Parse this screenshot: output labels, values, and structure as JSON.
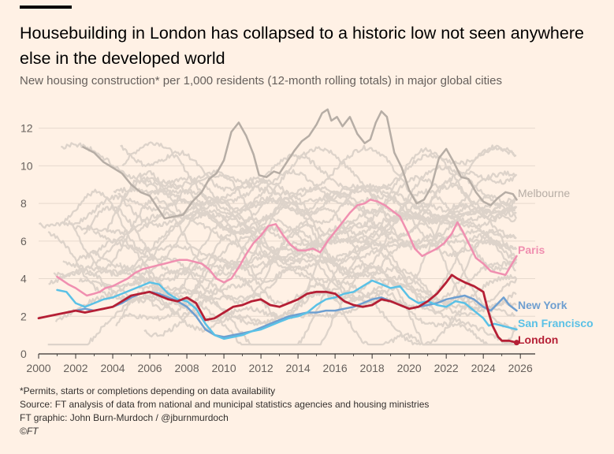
{
  "header": {
    "title": "Housebuilding in London has collapsed to a historic low not seen anywhere else in the developed world",
    "subtitle": "New housing construction* per 1,000 residents (12-month rolling totals) in major global cities"
  },
  "footer": {
    "note": "*Permits, starts or completions depending on data availability",
    "source": "Source: FT analysis of data from national and municipal statistics agencies and housing ministries",
    "credit": "FT graphic: John Burn-Murdoch / @jburnmurdoch",
    "copyright": "©FT"
  },
  "chart_data": {
    "type": "line",
    "title": "Housebuilding in London has collapsed to a historic low not seen anywhere else in the developed world",
    "xlabel": "",
    "ylabel": "",
    "xlim": [
      2000,
      2026.8
    ],
    "ylim": [
      0,
      13.2
    ],
    "x_ticks": [
      "2000",
      "2002",
      "2004",
      "2006",
      "2008",
      "2010",
      "2012",
      "2014",
      "2016",
      "2018",
      "2020",
      "2022",
      "2024",
      "2026"
    ],
    "x_tick_values": [
      2000,
      2002,
      2004,
      2006,
      2008,
      2010,
      2012,
      2014,
      2016,
      2018,
      2020,
      2022,
      2024,
      2026
    ],
    "y_ticks": [
      "0",
      "2",
      "4",
      "6",
      "8",
      "10",
      "12"
    ],
    "y_tick_values": [
      0,
      2,
      4,
      6,
      8,
      10,
      12
    ],
    "grid": true,
    "colors": {
      "background": "#FFF1E5",
      "grid": "#E6D9CE",
      "axis": "#33302E",
      "other_cities": "#DDD3CA",
      "Melbourne": "#B6ADA5",
      "Paris": "#F08FB0",
      "New York": "#6E9FD0",
      "San Francisco": "#5AC1E6",
      "London": "#B51F35"
    },
    "other_cities_description": "Unlabelled grey lines represent other major global cities",
    "series": [
      {
        "name": "Melbourne",
        "label": "Melbourne",
        "x": [
          2002.4,
          2003.0,
          2003.5,
          2004.0,
          2004.5,
          2005.0,
          2005.5,
          2006.0,
          2006.4,
          2006.8,
          2007.3,
          2007.8,
          2008.3,
          2008.8,
          2009.2,
          2009.6,
          2010.0,
          2010.4,
          2010.8,
          2011.2,
          2011.6,
          2011.9,
          2012.3,
          2012.7,
          2013.0,
          2013.4,
          2013.8,
          2014.2,
          2014.6,
          2015.0,
          2015.3,
          2015.6,
          2015.8,
          2016.1,
          2016.4,
          2016.8,
          2017.2,
          2017.6,
          2017.9,
          2018.2,
          2018.5,
          2018.8,
          2019.2,
          2019.6,
          2020.0,
          2020.4,
          2020.8,
          2021.2,
          2021.6,
          2022.0,
          2022.4,
          2022.8,
          2023.2,
          2023.6,
          2024.0,
          2024.4,
          2024.8,
          2025.2,
          2025.6,
          2025.8
        ],
        "values": [
          11.0,
          10.7,
          10.2,
          9.9,
          9.6,
          9.0,
          8.6,
          8.4,
          7.8,
          7.2,
          7.3,
          7.4,
          8.1,
          8.6,
          9.3,
          9.6,
          10.3,
          11.8,
          12.3,
          11.6,
          10.6,
          9.5,
          9.4,
          9.7,
          9.6,
          10.2,
          10.8,
          11.3,
          11.6,
          12.2,
          12.8,
          13.0,
          12.4,
          12.6,
          12.1,
          12.6,
          11.7,
          11.2,
          11.4,
          12.3,
          12.9,
          12.6,
          10.7,
          9.9,
          8.7,
          8.0,
          8.2,
          8.9,
          10.4,
          10.9,
          10.2,
          9.4,
          9.3,
          8.6,
          8.1,
          7.9,
          8.3,
          8.6,
          8.5,
          8.2
        ]
      },
      {
        "name": "Paris",
        "label": "Paris",
        "x": [
          2001.0,
          2001.3,
          2001.6,
          2002.0,
          2002.3,
          2002.6,
          2003.0,
          2003.3,
          2003.6,
          2004.0,
          2004.4,
          2004.8,
          2005.2,
          2005.6,
          2006.0,
          2006.4,
          2006.8,
          2007.2,
          2007.6,
          2008.0,
          2008.4,
          2008.8,
          2009.2,
          2009.6,
          2010.0,
          2010.4,
          2010.8,
          2011.2,
          2011.6,
          2012.0,
          2012.4,
          2012.8,
          2013.2,
          2013.6,
          2014.0,
          2014.4,
          2014.8,
          2015.2,
          2015.6,
          2016.0,
          2016.4,
          2016.8,
          2017.2,
          2017.6,
          2017.9,
          2018.3,
          2018.7,
          2019.1,
          2019.5,
          2019.9,
          2020.3,
          2020.7,
          2021.1,
          2021.5,
          2021.9,
          2022.3,
          2022.6,
          2022.9,
          2023.2,
          2023.6,
          2024.0,
          2024.4,
          2024.8,
          2025.2,
          2025.5,
          2025.8
        ],
        "values": [
          4.1,
          3.9,
          3.7,
          3.5,
          3.3,
          3.1,
          3.2,
          3.3,
          3.5,
          3.6,
          3.8,
          4.0,
          4.3,
          4.5,
          4.6,
          4.7,
          4.8,
          4.9,
          5.0,
          5.0,
          4.9,
          4.8,
          4.5,
          4.0,
          3.8,
          4.0,
          4.6,
          5.3,
          5.9,
          6.3,
          6.8,
          6.9,
          6.3,
          5.8,
          5.5,
          5.5,
          5.6,
          5.4,
          6.0,
          6.5,
          7.0,
          7.5,
          7.9,
          8.0,
          8.2,
          8.1,
          7.9,
          7.6,
          7.3,
          6.5,
          5.6,
          5.2,
          5.4,
          5.6,
          5.9,
          6.4,
          7.0,
          6.5,
          5.9,
          5.1,
          4.8,
          4.4,
          4.3,
          4.2,
          4.7,
          5.2
        ]
      },
      {
        "name": "New York",
        "label": "New York",
        "x": [
          2001.5,
          2002.0,
          2002.5,
          2003.0,
          2003.5,
          2004.0,
          2004.5,
          2005.0,
          2005.5,
          2006.0,
          2006.5,
          2007.0,
          2007.5,
          2008.0,
          2008.5,
          2009.0,
          2009.5,
          2010.0,
          2010.5,
          2011.0,
          2011.5,
          2012.0,
          2012.5,
          2013.0,
          2013.5,
          2014.0,
          2014.5,
          2015.0,
          2015.5,
          2016.0,
          2016.5,
          2017.0,
          2017.5,
          2018.0,
          2018.5,
          2019.0,
          2019.5,
          2020.0,
          2020.5,
          2021.0,
          2021.5,
          2022.0,
          2022.5,
          2023.0,
          2023.5,
          2024.0,
          2024.4,
          2024.8,
          2025.1,
          2025.4,
          2025.8
        ],
        "values": [
          2.2,
          2.3,
          2.4,
          2.3,
          2.4,
          2.5,
          2.7,
          3.0,
          3.2,
          3.3,
          3.2,
          3.0,
          2.8,
          2.5,
          2.0,
          1.3,
          1.0,
          0.9,
          1.0,
          1.1,
          1.2,
          1.4,
          1.6,
          1.8,
          2.0,
          2.1,
          2.2,
          2.2,
          2.3,
          2.3,
          2.4,
          2.5,
          2.7,
          2.9,
          3.0,
          2.8,
          2.6,
          2.4,
          2.5,
          2.6,
          2.7,
          2.9,
          3.0,
          3.1,
          2.9,
          2.5,
          2.3,
          2.7,
          3.0,
          2.6,
          2.3
        ]
      },
      {
        "name": "San Francisco",
        "label": "San Francisco",
        "x": [
          2001.0,
          2001.5,
          2002.0,
          2002.5,
          2003.0,
          2003.5,
          2004.0,
          2004.5,
          2005.0,
          2005.5,
          2006.0,
          2006.5,
          2007.0,
          2007.5,
          2008.0,
          2008.5,
          2009.0,
          2009.5,
          2010.0,
          2010.5,
          2011.0,
          2011.5,
          2012.0,
          2012.5,
          2013.0,
          2013.5,
          2014.0,
          2014.5,
          2015.0,
          2015.5,
          2016.0,
          2016.5,
          2017.0,
          2017.5,
          2018.0,
          2018.5,
          2019.0,
          2019.5,
          2020.0,
          2020.5,
          2021.0,
          2021.5,
          2022.0,
          2022.5,
          2023.0,
          2023.5,
          2024.0,
          2024.3,
          2024.6,
          2025.0,
          2025.4,
          2025.8
        ],
        "values": [
          3.4,
          3.3,
          2.7,
          2.5,
          2.7,
          2.9,
          3.0,
          3.2,
          3.4,
          3.6,
          3.8,
          3.7,
          3.2,
          2.9,
          2.8,
          2.4,
          1.6,
          1.0,
          0.8,
          0.9,
          1.0,
          1.2,
          1.3,
          1.5,
          1.7,
          1.9,
          2.0,
          2.2,
          2.6,
          2.9,
          3.0,
          3.2,
          3.3,
          3.6,
          3.9,
          3.7,
          3.5,
          3.6,
          3.0,
          2.7,
          2.8,
          2.6,
          2.5,
          2.8,
          2.7,
          2.3,
          1.9,
          1.5,
          1.6,
          1.5,
          1.4,
          1.3
        ]
      },
      {
        "name": "London",
        "label": "London",
        "x": [
          2000.0,
          2000.5,
          2001.0,
          2001.5,
          2002.0,
          2002.5,
          2003.0,
          2003.5,
          2004.0,
          2004.5,
          2005.0,
          2005.5,
          2006.0,
          2006.5,
          2007.0,
          2007.5,
          2008.0,
          2008.5,
          2009.0,
          2009.5,
          2010.0,
          2010.5,
          2011.0,
          2011.5,
          2012.0,
          2012.5,
          2013.0,
          2013.5,
          2014.0,
          2014.5,
          2015.0,
          2015.5,
          2016.0,
          2016.5,
          2017.0,
          2017.5,
          2018.0,
          2018.5,
          2019.0,
          2019.5,
          2020.0,
          2020.5,
          2021.0,
          2021.5,
          2022.0,
          2022.3,
          2022.6,
          2023.0,
          2023.5,
          2024.0,
          2024.2,
          2024.5,
          2024.8,
          2025.0,
          2025.4,
          2025.8
        ],
        "values": [
          1.9,
          2.0,
          2.1,
          2.2,
          2.3,
          2.2,
          2.3,
          2.4,
          2.5,
          2.8,
          3.1,
          3.2,
          3.3,
          3.1,
          2.9,
          2.8,
          3.0,
          2.7,
          1.8,
          1.9,
          2.2,
          2.5,
          2.6,
          2.8,
          2.9,
          2.6,
          2.5,
          2.7,
          2.9,
          3.2,
          3.3,
          3.3,
          3.2,
          2.8,
          2.6,
          2.5,
          2.6,
          2.9,
          2.8,
          2.6,
          2.4,
          2.5,
          2.8,
          3.2,
          3.8,
          4.2,
          4.0,
          3.8,
          3.6,
          3.3,
          2.5,
          1.5,
          0.9,
          0.7,
          0.7,
          0.6
        ]
      }
    ]
  }
}
